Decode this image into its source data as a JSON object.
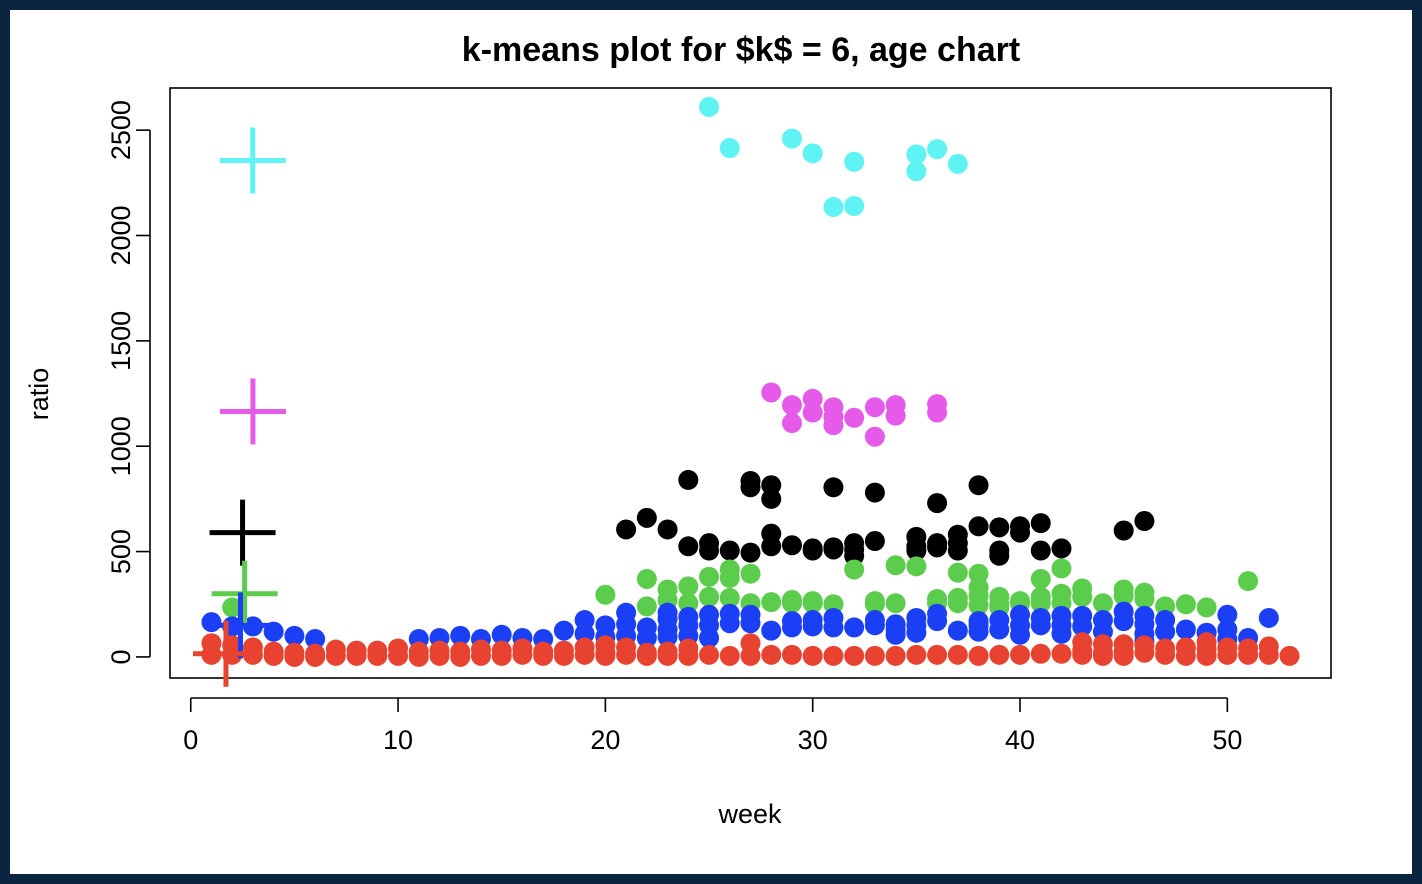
{
  "chart_data": {
    "type": "scatter",
    "title": "k-means plot for $k$ = 6, age chart",
    "xlabel": "week",
    "ylabel": "ratio",
    "xlim": [
      -1,
      55
    ],
    "ylim": [
      -100,
      2700
    ],
    "xticks": [
      "0",
      "10",
      "20",
      "30",
      "40",
      "50"
    ],
    "yticks": [
      "0",
      "500",
      "1000",
      "1500",
      "2000",
      "2500"
    ],
    "grid": false,
    "legend": "none",
    "colors": {
      "cyan": "#5ff3f3",
      "magenta": "#e65ae9",
      "black": "#000000",
      "green": "#5ccc4c",
      "blue": "#1a3ff5",
      "red": "#e84330"
    },
    "series": [
      {
        "color": "#5ff3f3",
        "centroid": [
          2.99,
          2356
        ],
        "points": [
          [
            25,
            2610
          ],
          [
            26,
            2415
          ],
          [
            29,
            2460
          ],
          [
            30,
            2390
          ],
          [
            31,
            2135
          ],
          [
            32,
            2140
          ],
          [
            32,
            2350
          ],
          [
            35,
            2385
          ],
          [
            35,
            2305
          ],
          [
            36,
            2410
          ],
          [
            37,
            2340
          ]
        ]
      },
      {
        "color": "#e65ae9",
        "centroid": [
          3,
          1165
        ],
        "points": [
          [
            28,
            1255
          ],
          [
            29,
            1195
          ],
          [
            29,
            1110
          ],
          [
            30,
            1225
          ],
          [
            30,
            1160
          ],
          [
            31,
            1185
          ],
          [
            31,
            1140
          ],
          [
            31,
            1100
          ],
          [
            32,
            1135
          ],
          [
            33,
            1185
          ],
          [
            33,
            1045
          ],
          [
            34,
            1195
          ],
          [
            34,
            1145
          ],
          [
            36,
            1200
          ],
          [
            36,
            1160
          ]
        ]
      },
      {
        "color": "#000000",
        "centroid": [
          2.5,
          590
        ],
        "points": [
          [
            21,
            605
          ],
          [
            22,
            660
          ],
          [
            23,
            605
          ],
          [
            24,
            840
          ],
          [
            24,
            525
          ],
          [
            25,
            540
          ],
          [
            25,
            505
          ],
          [
            26,
            505
          ],
          [
            27,
            835
          ],
          [
            27,
            805
          ],
          [
            27,
            495
          ],
          [
            28,
            815
          ],
          [
            28,
            750
          ],
          [
            28,
            585
          ],
          [
            28,
            525
          ],
          [
            29,
            530
          ],
          [
            30,
            515
          ],
          [
            30,
            505
          ],
          [
            31,
            805
          ],
          [
            31,
            520
          ],
          [
            31,
            510
          ],
          [
            32,
            540
          ],
          [
            32,
            510
          ],
          [
            32,
            480
          ],
          [
            33,
            780
          ],
          [
            33,
            550
          ],
          [
            35,
            570
          ],
          [
            35,
            525
          ],
          [
            35,
            505
          ],
          [
            36,
            730
          ],
          [
            36,
            540
          ],
          [
            36,
            520
          ],
          [
            37,
            580
          ],
          [
            37,
            540
          ],
          [
            37,
            505
          ],
          [
            38,
            815
          ],
          [
            38,
            620
          ],
          [
            39,
            615
          ],
          [
            39,
            505
          ],
          [
            39,
            480
          ],
          [
            40,
            620
          ],
          [
            40,
            590
          ],
          [
            41,
            635
          ],
          [
            41,
            505
          ],
          [
            42,
            515
          ],
          [
            45,
            600
          ],
          [
            46,
            645
          ]
        ]
      },
      {
        "color": "#5ccc4c",
        "centroid": [
          2.6,
          300
        ],
        "points": [
          [
            2,
            235
          ],
          [
            20,
            295
          ],
          [
            22,
            370
          ],
          [
            22,
            240
          ],
          [
            23,
            320
          ],
          [
            23,
            270
          ],
          [
            24,
            335
          ],
          [
            24,
            255
          ],
          [
            25,
            380
          ],
          [
            25,
            285
          ],
          [
            26,
            415
          ],
          [
            26,
            375
          ],
          [
            26,
            280
          ],
          [
            27,
            395
          ],
          [
            27,
            255
          ],
          [
            28,
            260
          ],
          [
            29,
            270
          ],
          [
            29,
            255
          ],
          [
            30,
            265
          ],
          [
            30,
            255
          ],
          [
            31,
            250
          ],
          [
            32,
            415
          ],
          [
            33,
            265
          ],
          [
            33,
            250
          ],
          [
            34,
            435
          ],
          [
            34,
            255
          ],
          [
            35,
            430
          ],
          [
            36,
            275
          ],
          [
            36,
            255
          ],
          [
            37,
            400
          ],
          [
            37,
            280
          ],
          [
            37,
            255
          ],
          [
            38,
            395
          ],
          [
            38,
            330
          ],
          [
            38,
            290
          ],
          [
            38,
            245
          ],
          [
            39,
            285
          ],
          [
            39,
            250
          ],
          [
            39,
            235
          ],
          [
            40,
            265
          ],
          [
            40,
            255
          ],
          [
            41,
            370
          ],
          [
            41,
            285
          ],
          [
            41,
            255
          ],
          [
            42,
            420
          ],
          [
            42,
            300
          ],
          [
            42,
            255
          ],
          [
            43,
            325
          ],
          [
            43,
            285
          ],
          [
            44,
            255
          ],
          [
            45,
            320
          ],
          [
            45,
            290
          ],
          [
            46,
            305
          ],
          [
            46,
            275
          ],
          [
            47,
            240
          ],
          [
            48,
            250
          ],
          [
            49,
            235
          ],
          [
            51,
            360
          ]
        ]
      },
      {
        "color": "#1a3ff5",
        "centroid": [
          2.4,
          150
        ],
        "points": [
          [
            1,
            165
          ],
          [
            2,
            145
          ],
          [
            3,
            145
          ],
          [
            4,
            120
          ],
          [
            5,
            100
          ],
          [
            6,
            85
          ],
          [
            11,
            85
          ],
          [
            12,
            90
          ],
          [
            13,
            100
          ],
          [
            14,
            85
          ],
          [
            15,
            105
          ],
          [
            16,
            90
          ],
          [
            17,
            85
          ],
          [
            18,
            125
          ],
          [
            19,
            175
          ],
          [
            19,
            110
          ],
          [
            20,
            150
          ],
          [
            20,
            95
          ],
          [
            21,
            210
          ],
          [
            21,
            155
          ],
          [
            21,
            100
          ],
          [
            22,
            140
          ],
          [
            22,
            90
          ],
          [
            23,
            210
          ],
          [
            23,
            180
          ],
          [
            23,
            130
          ],
          [
            23,
            95
          ],
          [
            24,
            190
          ],
          [
            24,
            150
          ],
          [
            24,
            100
          ],
          [
            25,
            200
          ],
          [
            25,
            150
          ],
          [
            25,
            90
          ],
          [
            26,
            205
          ],
          [
            26,
            160
          ],
          [
            27,
            200
          ],
          [
            27,
            160
          ],
          [
            28,
            125
          ],
          [
            29,
            170
          ],
          [
            29,
            140
          ],
          [
            30,
            175
          ],
          [
            30,
            145
          ],
          [
            31,
            185
          ],
          [
            31,
            140
          ],
          [
            32,
            140
          ],
          [
            33,
            175
          ],
          [
            33,
            150
          ],
          [
            34,
            155
          ],
          [
            34,
            130
          ],
          [
            34,
            105
          ],
          [
            35,
            185
          ],
          [
            35,
            150
          ],
          [
            35,
            115
          ],
          [
            36,
            205
          ],
          [
            36,
            170
          ],
          [
            37,
            125
          ],
          [
            38,
            170
          ],
          [
            38,
            150
          ],
          [
            38,
            120
          ],
          [
            39,
            175
          ],
          [
            39,
            130
          ],
          [
            40,
            200
          ],
          [
            40,
            150
          ],
          [
            40,
            105
          ],
          [
            41,
            185
          ],
          [
            41,
            150
          ],
          [
            42,
            195
          ],
          [
            42,
            150
          ],
          [
            42,
            110
          ],
          [
            43,
            195
          ],
          [
            43,
            145
          ],
          [
            44,
            175
          ],
          [
            44,
            120
          ],
          [
            45,
            215
          ],
          [
            45,
            170
          ],
          [
            46,
            195
          ],
          [
            46,
            155
          ],
          [
            46,
            110
          ],
          [
            46,
            75
          ],
          [
            47,
            175
          ],
          [
            47,
            120
          ],
          [
            48,
            130
          ],
          [
            49,
            115
          ],
          [
            50,
            200
          ],
          [
            50,
            130
          ],
          [
            50,
            85
          ],
          [
            51,
            90
          ],
          [
            52,
            185
          ]
        ]
      },
      {
        "color": "#e84330",
        "centroid": [
          1.7,
          15
        ],
        "points": [
          [
            1,
            65
          ],
          [
            1,
            10
          ],
          [
            2,
            55
          ],
          [
            2,
            10
          ],
          [
            3,
            45
          ],
          [
            3,
            10
          ],
          [
            4,
            25
          ],
          [
            4,
            5
          ],
          [
            5,
            20
          ],
          [
            5,
            0
          ],
          [
            6,
            15
          ],
          [
            6,
            0
          ],
          [
            7,
            35
          ],
          [
            7,
            5
          ],
          [
            8,
            30
          ],
          [
            8,
            5
          ],
          [
            9,
            30
          ],
          [
            9,
            5
          ],
          [
            10,
            40
          ],
          [
            10,
            5
          ],
          [
            11,
            25
          ],
          [
            11,
            0
          ],
          [
            12,
            30
          ],
          [
            12,
            5
          ],
          [
            13,
            25
          ],
          [
            13,
            0
          ],
          [
            14,
            35
          ],
          [
            14,
            5
          ],
          [
            15,
            30
          ],
          [
            15,
            5
          ],
          [
            16,
            40
          ],
          [
            16,
            10
          ],
          [
            17,
            25
          ],
          [
            17,
            5
          ],
          [
            18,
            30
          ],
          [
            18,
            5
          ],
          [
            19,
            45
          ],
          [
            19,
            10
          ],
          [
            20,
            55
          ],
          [
            20,
            20
          ],
          [
            20,
            5
          ],
          [
            21,
            45
          ],
          [
            21,
            10
          ],
          [
            22,
            20
          ],
          [
            22,
            5
          ],
          [
            23,
            25
          ],
          [
            23,
            5
          ],
          [
            24,
            40
          ],
          [
            24,
            5
          ],
          [
            25,
            10
          ],
          [
            26,
            5
          ],
          [
            27,
            65
          ],
          [
            27,
            5
          ],
          [
            28,
            10
          ],
          [
            29,
            10
          ],
          [
            30,
            5
          ],
          [
            31,
            5
          ],
          [
            32,
            5
          ],
          [
            33,
            5
          ],
          [
            34,
            5
          ],
          [
            35,
            10
          ],
          [
            36,
            10
          ],
          [
            37,
            10
          ],
          [
            38,
            5
          ],
          [
            39,
            10
          ],
          [
            40,
            10
          ],
          [
            41,
            15
          ],
          [
            42,
            15
          ],
          [
            43,
            70
          ],
          [
            43,
            30
          ],
          [
            43,
            10
          ],
          [
            44,
            60
          ],
          [
            44,
            20
          ],
          [
            44,
            5
          ],
          [
            45,
            60
          ],
          [
            45,
            25
          ],
          [
            45,
            5
          ],
          [
            46,
            55
          ],
          [
            46,
            20
          ],
          [
            47,
            40
          ],
          [
            47,
            10
          ],
          [
            48,
            45
          ],
          [
            48,
            5
          ],
          [
            49,
            70
          ],
          [
            49,
            35
          ],
          [
            49,
            5
          ],
          [
            50,
            45
          ],
          [
            50,
            10
          ],
          [
            51,
            40
          ],
          [
            51,
            10
          ],
          [
            52,
            50
          ],
          [
            52,
            10
          ],
          [
            53,
            5
          ]
        ]
      }
    ]
  }
}
